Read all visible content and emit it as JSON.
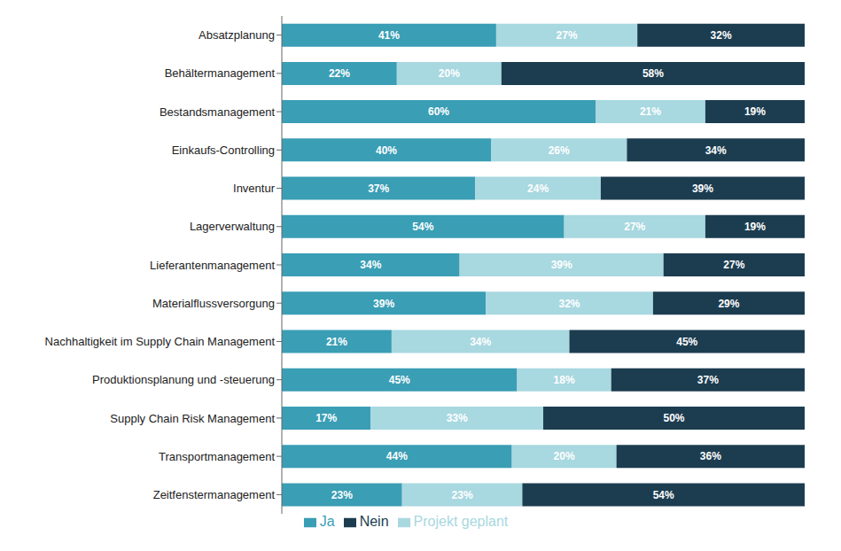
{
  "chart_data": {
    "type": "bar",
    "orientation": "horizontal",
    "stacked": true,
    "categories": [
      "Absatzplanung",
      "Behältermanagement",
      "Bestandsmanagement",
      "Einkaufs-Controlling",
      "Inventur",
      "Lagerverwaltung",
      "Lieferantenmanagement",
      "Materialflussversorgung",
      "Nachhaltigkeit im Supply Chain Management",
      "Produktionsplanung und -steuerung",
      "Supply Chain Risk Management",
      "Transportmanagement",
      "Zeitfenstermanagement"
    ],
    "series": [
      {
        "name": "Ja",
        "color": "#3A9EB5",
        "values": [
          41,
          22,
          60,
          40,
          37,
          54,
          34,
          39,
          21,
          45,
          17,
          44,
          23
        ],
        "value_labels": [
          "41%",
          "22%",
          "60%",
          "40%",
          "37%",
          "54%",
          "34%",
          "39%",
          "21%",
          "45%",
          "17%",
          "44%",
          "23%"
        ]
      },
      {
        "name": "Projekt geplant",
        "color": "#A8D8E0",
        "values": [
          27,
          20,
          21,
          26,
          24,
          27,
          39,
          32,
          34,
          18,
          33,
          20,
          23
        ],
        "value_labels": [
          "27%",
          "20%",
          "21%",
          "26%",
          "24%",
          "27%",
          "39%",
          "32%",
          "34%",
          "18%",
          "33%",
          "20%",
          "23%"
        ]
      },
      {
        "name": "Nein",
        "color": "#1C3D50",
        "values": [
          32,
          58,
          19,
          34,
          39,
          19,
          27,
          29,
          45,
          37,
          50,
          36,
          54
        ],
        "value_labels": [
          "32%",
          "58%",
          "19%",
          "34%",
          "39%",
          "19%",
          "27%",
          "29%",
          "45%",
          "37%",
          "50%",
          "36%",
          "54%"
        ]
      }
    ],
    "xlim": [
      0,
      100
    ],
    "data_labels": true,
    "tick_labels": "y",
    "grid": false,
    "legend": "bottom"
  }
}
